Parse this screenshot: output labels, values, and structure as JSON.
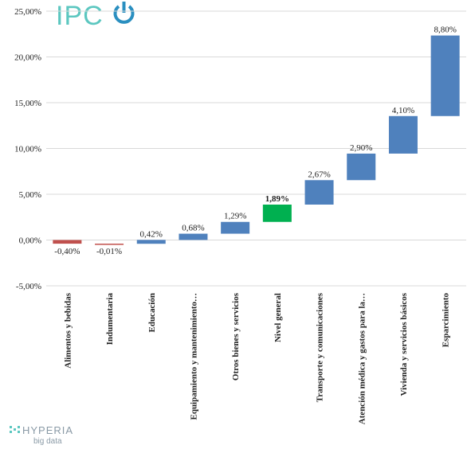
{
  "chart_data": {
    "type": "waterfall",
    "categories": [
      "Alimentos y bebidas",
      "Indumentaria",
      "Educación",
      "Equipamiento y mantenimiento…",
      "Otros bienes y servicios",
      "Nivel general",
      "Transporte y comunicaciones",
      "Atención médica y gastos para la…",
      "Vivienda y servicios básicos",
      "Esparcimiento"
    ],
    "values": [
      -0.4,
      -0.01,
      0.42,
      0.68,
      1.29,
      1.89,
      2.67,
      2.9,
      4.1,
      8.8
    ],
    "value_labels": [
      "-0,40%",
      "-0,01%",
      "0,42%",
      "0,68%",
      "1,29%",
      "1,89%",
      "2,67%",
      "2,90%",
      "4,10%",
      "8,80%"
    ],
    "colors": [
      "#c0504d",
      "#c0504d",
      "#4f81bd",
      "#4f81bd",
      "#4f81bd",
      "#00b050",
      "#4f81bd",
      "#4f81bd",
      "#4f81bd",
      "#4f81bd"
    ],
    "label_weights": [
      "normal",
      "normal",
      "normal",
      "normal",
      "normal",
      "bold",
      "normal",
      "normal",
      "normal",
      "normal"
    ],
    "ylim": [
      -5,
      25
    ],
    "yticks": [
      {
        "value": -5,
        "label": "-5,00%"
      },
      {
        "value": 0,
        "label": "0,00%"
      },
      {
        "value": 5,
        "label": "5,00%"
      },
      {
        "value": 10,
        "label": "10,00%"
      },
      {
        "value": 15,
        "label": "15,00%"
      },
      {
        "value": 20,
        "label": "20,00%"
      },
      {
        "value": 25,
        "label": "25,00%"
      }
    ],
    "grid": true
  },
  "logos": {
    "top": "IPC",
    "bottom": "HYPERIA",
    "bottom_sub": "big data"
  }
}
